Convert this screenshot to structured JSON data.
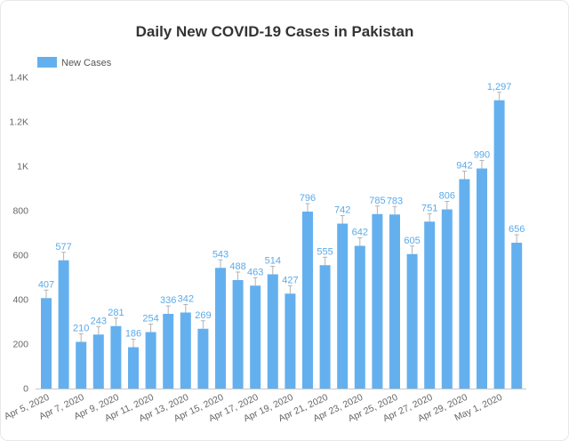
{
  "chart_data": {
    "type": "bar",
    "title": "Daily New COVID-19 Cases in Pakistan",
    "xlabel": "",
    "ylabel": "",
    "x_tick_labels": [
      "Apr 5, 2020",
      "Apr 7, 2020",
      "Apr 9, 2020",
      "Apr 11, 2020",
      "Apr 13, 2020",
      "Apr 15, 2020",
      "Apr 17, 2020",
      "Apr 19, 2020",
      "Apr 21, 2020",
      "Apr 23, 2020",
      "Apr 25, 2020",
      "Apr 27, 2020",
      "Apr 29, 2020",
      "May 1, 2020"
    ],
    "series": [
      {
        "name": "New Cases",
        "values": [
          407,
          577,
          210,
          243,
          281,
          186,
          254,
          336,
          342,
          269,
          543,
          488,
          463,
          514,
          427,
          796,
          555,
          742,
          642,
          785,
          783,
          605,
          751,
          806,
          942,
          990,
          1297,
          656
        ]
      }
    ],
    "ylim": [
      0,
      1400
    ],
    "y_ticks": [
      0,
      200,
      400,
      600,
      800,
      1000,
      1200,
      1400
    ],
    "y_tick_labels": [
      "0",
      "200",
      "400",
      "600",
      "800",
      "1K",
      "1.2K",
      "1.4K"
    ],
    "data_labels": true,
    "grid": false,
    "legend": "top-left",
    "colors": {
      "bar": "#64b0ef",
      "data_label": "#5aaae9",
      "leader": "#b3b3b3",
      "axis": "#c8c8c8",
      "frame": "#e8e8e8"
    }
  }
}
